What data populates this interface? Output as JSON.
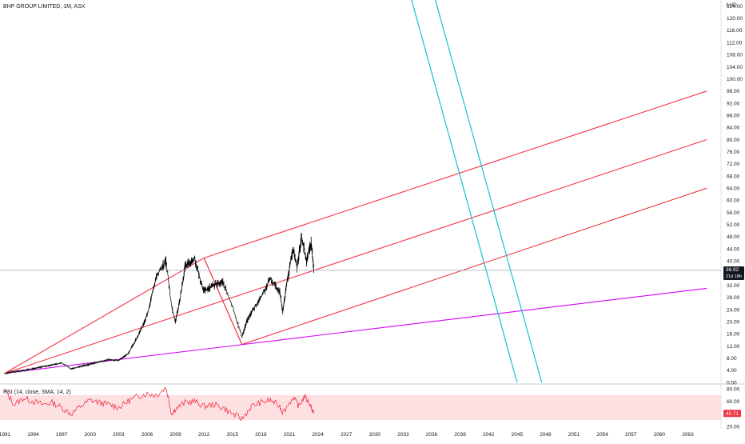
{
  "header": {
    "symbol_title": "BHP GROUP LIMITED, 1M, ASX",
    "currency": "AUD"
  },
  "rsi_panel": {
    "label": "RSI (14, close, SMA, 14, 2)",
    "value_label": "40.71",
    "ticks": [
      "80.00",
      "60.00",
      "40.00",
      "20.00"
    ]
  },
  "price_marker": {
    "price_label": "36.92",
    "countdown_label": "21d 18h"
  },
  "colors": {
    "price_line": "#000000",
    "pitchfork": "#f23645",
    "trend_line": "#d500f9",
    "channel": "#00bcd4",
    "rsi_line": "#f23645",
    "rsi_band": "#fde0e2",
    "grid": "#d1d4dc"
  },
  "chart_data": [
    {
      "type": "line",
      "name": "price",
      "ylim": [
        0,
        126
      ],
      "xlim": [
        1990.5,
        2066.5
      ],
      "y_ticks": [
        "0.00",
        "4.00",
        "8.00",
        "12.00",
        "16.00",
        "20.00",
        "24.00",
        "28.00",
        "32.00",
        "36.00",
        "40.00",
        "44.00",
        "48.00",
        "52.00",
        "56.00",
        "60.00",
        "64.00",
        "68.00",
        "72.00",
        "76.00",
        "80.00",
        "84.00",
        "88.00",
        "92.00",
        "96.00",
        "100.00",
        "104.00",
        "108.00",
        "112.00",
        "116.00",
        "120.00",
        "124.00"
      ],
      "x_ticks": [
        "1991",
        "1994",
        "1997",
        "2000",
        "2003",
        "2006",
        "2009",
        "2012",
        "2015",
        "2018",
        "2021",
        "2024",
        "2027",
        "2030",
        "2033",
        "2036",
        "2039",
        "2042",
        "2045",
        "2048",
        "2051",
        "2054",
        "2057",
        "2060",
        "2063"
      ],
      "x_tick_values": [
        1991,
        1994,
        1997,
        2000,
        2003,
        2006,
        2009,
        2012,
        2015,
        2018,
        2021,
        2024,
        2027,
        2030,
        2033,
        2036,
        2039,
        2042,
        2045,
        2048,
        2051,
        2054,
        2057,
        2060,
        2063
      ],
      "series": [
        {
          "points": [
            [
              1991.0,
              3.0
            ],
            [
              1992.0,
              3.5
            ],
            [
              1993.0,
              4.0
            ],
            [
              1994.0,
              4.5
            ],
            [
              1995.0,
              5.2
            ],
            [
              1996.0,
              5.8
            ],
            [
              1997.0,
              6.4
            ],
            [
              1998.0,
              4.5
            ],
            [
              1999.0,
              5.3
            ],
            [
              2000.0,
              6.0
            ],
            [
              2001.0,
              6.8
            ],
            [
              2002.0,
              7.5
            ],
            [
              2003.0,
              7.2
            ],
            [
              2004.0,
              9.5
            ],
            [
              2005.0,
              15.0
            ],
            [
              2006.0,
              22.0
            ],
            [
              2007.0,
              35.0
            ],
            [
              2008.0,
              40.0
            ],
            [
              2008.6,
              25.0
            ],
            [
              2009.0,
              20.0
            ],
            [
              2009.5,
              28.0
            ],
            [
              2010.0,
              38.0
            ],
            [
              2011.0,
              41.0
            ],
            [
              2011.5,
              35.0
            ],
            [
              2012.0,
              30.0
            ],
            [
              2013.0,
              32.0
            ],
            [
              2014.0,
              33.0
            ],
            [
              2015.0,
              25.0
            ],
            [
              2016.0,
              15.0
            ],
            [
              2016.5,
              20.0
            ],
            [
              2017.0,
              23.0
            ],
            [
              2018.0,
              28.0
            ],
            [
              2019.0,
              34.0
            ],
            [
              2020.0,
              30.0
            ],
            [
              2020.3,
              23.0
            ],
            [
              2020.8,
              34.0
            ],
            [
              2021.4,
              44.0
            ],
            [
              2021.8,
              38.0
            ],
            [
              2022.3,
              48.0
            ],
            [
              2022.8,
              40.0
            ],
            [
              2023.3,
              46.0
            ],
            [
              2023.6,
              36.92
            ]
          ]
        }
      ],
      "lines": [
        {
          "name": "andrews-pitchfork-upper",
          "points": [
            [
              2012.0,
              41.0
            ],
            [
              2065.0,
              96.0
            ]
          ]
        },
        {
          "name": "andrews-pitchfork-median",
          "points": [
            [
              1991.0,
              3.0
            ],
            [
              2065.0,
              80.0
            ]
          ]
        },
        {
          "name": "andrews-pitchfork-lower",
          "points": [
            [
              2016.0,
              12.5
            ],
            [
              2065.0,
              64.0
            ]
          ]
        },
        {
          "name": "pitchfork-handle-a",
          "points": [
            [
              2012.0,
              41.0
            ],
            [
              2016.0,
              12.5
            ]
          ]
        },
        {
          "name": "pitchfork-handle-b",
          "points": [
            [
              2012.0,
              41.0
            ],
            [
              2016.0,
              12.5
            ]
          ]
        },
        {
          "name": "support-trend-line",
          "points": [
            [
              1991.0,
              3.0
            ],
            [
              2065.0,
              31.0
            ]
          ]
        },
        {
          "name": "descending-channel-line-1",
          "points": [
            [
              2033.8,
              127.0
            ],
            [
              2045.0,
              0.0
            ]
          ]
        },
        {
          "name": "descending-channel-line-2",
          "points": [
            [
              2036.3,
              127.0
            ],
            [
              2047.6,
              0.0
            ]
          ]
        }
      ]
    },
    {
      "type": "line",
      "name": "rsi",
      "ylim": [
        20,
        80
      ],
      "band": [
        30,
        70
      ],
      "series": [
        {
          "points": [
            [
              1991.0,
              78.0
            ],
            [
              1992.0,
              55.0
            ],
            [
              1993.0,
              65.0
            ],
            [
              1994.0,
              60.0
            ],
            [
              1995.0,
              55.0
            ],
            [
              1996.0,
              58.0
            ],
            [
              1997.0,
              50.0
            ],
            [
              1998.0,
              40.0
            ],
            [
              1999.0,
              52.0
            ],
            [
              2000.0,
              62.0
            ],
            [
              2001.0,
              58.0
            ],
            [
              2002.0,
              55.0
            ],
            [
              2003.0,
              50.0
            ],
            [
              2004.0,
              60.0
            ],
            [
              2005.0,
              68.0
            ],
            [
              2006.0,
              72.0
            ],
            [
              2007.0,
              70.0
            ],
            [
              2008.0,
              82.0
            ],
            [
              2008.6,
              40.0
            ],
            [
              2009.0,
              48.0
            ],
            [
              2010.0,
              58.0
            ],
            [
              2011.0,
              60.0
            ],
            [
              2012.0,
              52.0
            ],
            [
              2013.0,
              55.0
            ],
            [
              2014.0,
              50.0
            ],
            [
              2015.0,
              40.0
            ],
            [
              2016.0,
              32.0
            ],
            [
              2017.0,
              52.0
            ],
            [
              2018.0,
              58.0
            ],
            [
              2019.0,
              62.0
            ],
            [
              2020.0,
              52.0
            ],
            [
              2020.3,
              42.0
            ],
            [
              2021.4,
              66.0
            ],
            [
              2022.0,
              52.0
            ],
            [
              2022.6,
              68.0
            ],
            [
              2023.2,
              55.0
            ],
            [
              2023.6,
              40.71
            ]
          ]
        }
      ]
    }
  ]
}
